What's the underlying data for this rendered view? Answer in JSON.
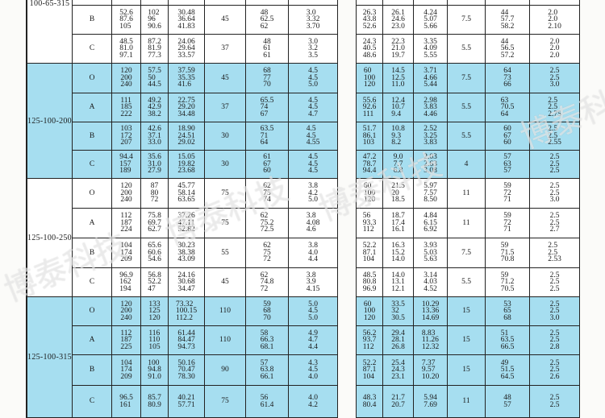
{
  "colors": {
    "highlight": "#a6def0",
    "plain": "#ffffff",
    "grid": "#222222"
  },
  "watermark": "博泰科技",
  "groups": [
    {
      "model": "100-65-315",
      "shade": "plain",
      "rows": [
        {
          "grade": "",
          "left": [
            [],
            [],
            [],
            "",
            [],
            []
          ],
          "right": [
            [],
            [],
            [],
            "",
            [],
            []
          ]
        },
        {
          "grade": "B",
          "left": [
            [
              "52.6",
              "87.6",
              "105"
            ],
            [
              "102",
              "96",
              "90.6"
            ],
            [
              "30.48",
              "36.64",
              "41.83"
            ],
            "45",
            [
              "48",
              "62.5",
              "62"
            ],
            [
              "3.0",
              "3.32",
              "3.70"
            ]
          ],
          "right": [
            [
              "26.3",
              "43.8",
              "52.6"
            ],
            [
              "26.1",
              "24.6",
              "23.0"
            ],
            [
              "4.24",
              "5.07",
              "5.66"
            ],
            "7.5",
            [
              "44",
              "57.7",
              "58.2"
            ],
            [
              "2.0",
              "2.0",
              "2.10"
            ]
          ]
        },
        {
          "grade": "C",
          "left": [
            [
              "48.5",
              "81.0",
              "97.1"
            ],
            [
              "87.2",
              "81.9",
              "77.3"
            ],
            [
              "24.06",
              "29.64",
              "33.57"
            ],
            "37",
            [
              "48",
              "61",
              "61"
            ],
            [
              "3.0",
              "3.2",
              "3.5"
            ]
          ],
          "right": [
            [
              "24.3",
              "40.5",
              "48.6"
            ],
            [
              "22.3",
              "21.0",
              "19.7"
            ],
            [
              "3.35",
              "4.09",
              "5.55"
            ],
            "5.5",
            [
              "44",
              "56.5",
              "57.2"
            ],
            [
              "2.0",
              "2.0",
              "2.0"
            ]
          ]
        }
      ]
    },
    {
      "model": "125-100-200",
      "shade": "highlight",
      "rows": [
        {
          "grade": "O",
          "left": [
            [
              "120",
              "200",
              "240"
            ],
            [
              "57.5",
              "50",
              "44.5"
            ],
            [
              "37.59",
              "35.35",
              "41.6"
            ],
            "45",
            [
              "68",
              "77",
              "70"
            ],
            [
              "4.5",
              "4.5",
              "5.0"
            ]
          ],
          "right": [
            [
              "60",
              "100",
              "120"
            ],
            [
              "14.5",
              "12.5",
              "11.0"
            ],
            [
              "3.71",
              "4.66",
              "5.44"
            ],
            "7.5",
            [
              "64",
              "73",
              "66"
            ],
            [
              "2.5",
              "2.5",
              "3.0"
            ]
          ]
        },
        {
          "grade": "A",
          "left": [
            [
              "111",
              "185",
              "222"
            ],
            [
              "49.2",
              "42.9",
              "38.2"
            ],
            [
              "22.75",
              "29.20",
              "34.48"
            ],
            "37",
            [
              "65.5",
              "74",
              "67"
            ],
            [
              "4.5",
              "4.5",
              "4.7"
            ]
          ],
          "right": [
            [
              "55.6",
              "92.6",
              "111"
            ],
            [
              "12.4",
              "10.7",
              "9.4"
            ],
            [
              "2.98",
              "3.83",
              "4.46"
            ],
            "5.5",
            [
              "63",
              "70.5",
              "64"
            ],
            [
              "2.5",
              "2.5",
              "2.75"
            ]
          ]
        },
        {
          "grade": "B",
          "left": [
            [
              "103",
              "172",
              "207"
            ],
            [
              "42.6",
              "37.1",
              "33.0"
            ],
            [
              "18.90",
              "24.51",
              "29.02"
            ],
            "30",
            [
              "63.5",
              "71",
              "64"
            ],
            [
              "4.5",
              "4.5",
              "4.55"
            ]
          ],
          "right": [
            [
              "51.7",
              "86.1",
              "103"
            ],
            [
              "10.8",
              "9.3",
              "8.2"
            ],
            [
              "2.52",
              "3.25",
              "3.83"
            ],
            "5.5",
            [
              "60",
              "67",
              "60"
            ],
            [
              "2.5",
              "2.5",
              "2.55"
            ]
          ]
        },
        {
          "grade": "C",
          "left": [
            [
              "94.4",
              "157",
              "189"
            ],
            [
              "35.6",
              "31.0",
              "27.9"
            ],
            [
              "15.05",
              "19.82",
              "23.68"
            ],
            "30",
            [
              "61",
              "67",
              "60"
            ],
            [
              "4.5",
              "4.5",
              "4.5"
            ]
          ],
          "right": [
            [
              "47.2",
              "78.7",
              "94.4"
            ],
            [
              "9.0",
              "7.7",
              "6.8"
            ],
            [
              "2.03",
              "2.63",
              "3.08"
            ],
            "4",
            [
              "57",
              "63",
              "57"
            ],
            [
              "2.5",
              "2.5",
              "2.5"
            ]
          ]
        }
      ]
    },
    {
      "model": "125-100-250",
      "shade": "plain",
      "rows": [
        {
          "grade": "O",
          "left": [
            [
              "120",
              "200",
              "240"
            ],
            [
              "87",
              "80",
              "72"
            ],
            [
              "45.77",
              "58.14",
              "63.65"
            ],
            "75",
            [
              "62",
              "75",
              "74"
            ],
            [
              "3.8",
              "4.2",
              "5.0"
            ]
          ],
          "right": [
            [
              "60",
              "100",
              "120"
            ],
            [
              "21.5",
              "20",
              "18.5"
            ],
            [
              "5.97",
              "7.57",
              "8.50"
            ],
            "11",
            [
              "59",
              "72",
              "71"
            ],
            [
              "2.5",
              "2.5",
              "3.0"
            ]
          ]
        },
        {
          "grade": "A",
          "left": [
            [
              "112",
              "187",
              "224"
            ],
            [
              "75.8",
              "69.7",
              "62.7"
            ],
            [
              "37.26",
              "47.11",
              "52.82"
            ],
            "75",
            [
              "62",
              "75.2",
              "72.5"
            ],
            [
              "3.8",
              "4.08",
              "4.6"
            ]
          ],
          "right": [
            [
              "56",
              "93.3",
              "112"
            ],
            [
              "18.7",
              "17.4",
              "16.1"
            ],
            [
              "4.84",
              "6.15",
              "6.92"
            ],
            "11",
            [
              "59",
              "72",
              "71"
            ],
            [
              "2.5",
              "2.5",
              "2.7"
            ]
          ]
        },
        {
          "grade": "B",
          "left": [
            [
              "104",
              "174",
              "209"
            ],
            [
              "65.6",
              "60.6",
              "54.6"
            ],
            [
              "30.23",
              "38.38",
              "43.09"
            ],
            "55",
            [
              "62",
              "75",
              "72"
            ],
            [
              "3.8",
              "4.0",
              "4.4"
            ]
          ],
          "right": [
            [
              "52.2",
              "87.1",
              "104"
            ],
            [
              "16.3",
              "15.2",
              "14.0"
            ],
            [
              "3.93",
              "5.03",
              "5.63"
            ],
            "7.5",
            [
              "59",
              "71.5",
              "70.8"
            ],
            [
              "2.5",
              "2.5",
              "2.53"
            ]
          ]
        },
        {
          "grade": "C",
          "left": [
            [
              "96.9",
              "162",
              "194"
            ],
            [
              "56.8",
              "52.2",
              "47"
            ],
            [
              "24.16",
              "30.68",
              "34.47"
            ],
            "45",
            [
              "62",
              "74.8",
              "72"
            ],
            [
              "3.8",
              "3.9",
              "4.15"
            ]
          ],
          "right": [
            [
              "48.5",
              "80.8",
              "96.9"
            ],
            [
              "14.0",
              "13.1",
              "12.1"
            ],
            [
              "3.14",
              "4.03",
              "4.52"
            ],
            "5.5",
            [
              "59",
              "71.2",
              "70.5"
            ],
            [
              "2.5",
              "2.5",
              "2.5"
            ]
          ]
        }
      ]
    },
    {
      "model": "125-100-315",
      "shade": "highlight",
      "rows": [
        {
          "grade": "O",
          "left": [
            [
              "120",
              "200",
              "240"
            ],
            [
              "133",
              "125",
              "120"
            ],
            [
              "73.32",
              "100.15",
              "112.2"
            ],
            "110",
            [
              "59",
              "68",
              "70"
            ],
            [
              "5.0",
              "4.5",
              "5.0"
            ]
          ],
          "right": [
            [
              "60",
              "100",
              "120"
            ],
            [
              "33.5",
              "32",
              "30.5"
            ],
            [
              "10.29",
              "13.36",
              "14.69"
            ],
            "15",
            [
              "53",
              "65",
              "68"
            ],
            [
              "2.5",
              "2.5",
              "3.0"
            ]
          ]
        },
        {
          "grade": "A",
          "left": [
            [
              "112",
              "187",
              "225"
            ],
            [
              "116",
              "110",
              "105"
            ],
            [
              "61.44",
              "84.47",
              "94.73"
            ],
            "110",
            [
              "58",
              "66.3",
              "68.1"
            ],
            [
              "4.9",
              "4.7",
              "4.4"
            ]
          ],
          "right": [
            [
              "56.2",
              "93.7",
              "112"
            ],
            [
              "29.4",
              "28.1",
              "26.8"
            ],
            [
              "8.83",
              "11.26",
              "12.32"
            ],
            "15",
            [
              "51",
              "63.5",
              "66.5"
            ],
            [
              "2.5",
              "2.5",
              "2.8"
            ]
          ]
        },
        {
          "grade": "B",
          "left": [
            [
              "104",
              "174",
              "209"
            ],
            [
              "100",
              "94.8",
              "91.0"
            ],
            [
              "50.16",
              "70.47",
              "78.30"
            ],
            "90",
            [
              "57",
              "63.8",
              "66.1"
            ],
            [
              "4.3",
              "4.5",
              "4.0"
            ]
          ],
          "right": [
            [
              "52.2",
              "87.1",
              "104"
            ],
            [
              "25.4",
              "24.3",
              "23.1"
            ],
            [
              "7.37",
              "9.57",
              "10.20"
            ],
            "15",
            [
              "49",
              "51.5",
              "64.5"
            ],
            [
              "2.5",
              "2.5",
              "2.6"
            ]
          ]
        },
        {
          "grade": "C",
          "left": [
            [
              "96.5",
              "161"
            ],
            [
              "85.7",
              "80.9"
            ],
            [
              "40.21",
              "57.71"
            ],
            "75",
            [
              "56",
              "61.4"
            ],
            [
              "4.0",
              "4.2"
            ]
          ],
          "right": [
            [
              "48.3",
              "80.4"
            ],
            [
              "21.7",
              "20.7"
            ],
            [
              "5.94",
              "7.69"
            ],
            "11",
            [
              "48",
              "57"
            ],
            [
              "2.5",
              "2.5"
            ]
          ]
        }
      ]
    }
  ]
}
